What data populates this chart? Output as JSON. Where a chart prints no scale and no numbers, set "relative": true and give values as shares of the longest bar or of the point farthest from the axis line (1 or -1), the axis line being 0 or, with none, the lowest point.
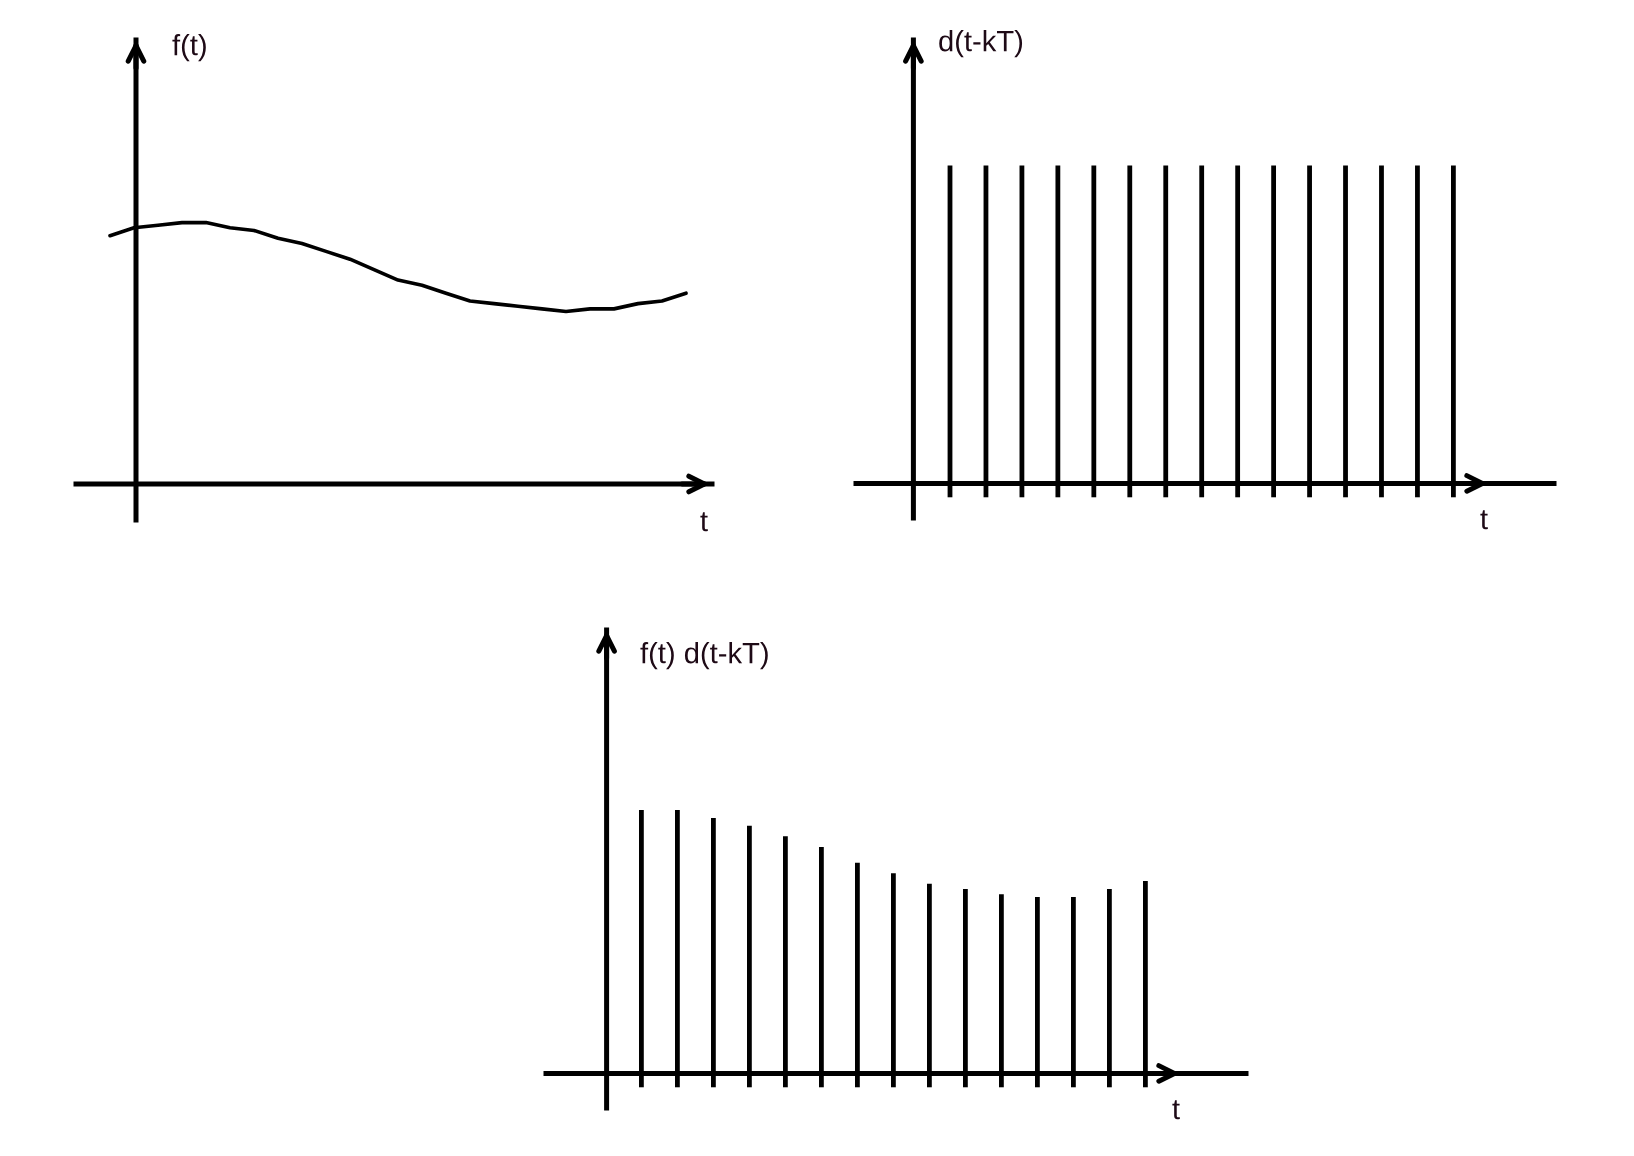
{
  "chart_data": [
    {
      "type": "line",
      "xlabel": "t",
      "ylabel": "f(t)",
      "relative": true,
      "color": "#000000",
      "categories": [
        null,
        null,
        null,
        null,
        null,
        null,
        null,
        null,
        null,
        null,
        null,
        null,
        null,
        null,
        null,
        null,
        null,
        null,
        null,
        null,
        null,
        null,
        null,
        null,
        null
      ],
      "values": [
        0.95,
        0.98,
        0.99,
        1.0,
        1.0,
        0.98,
        0.97,
        0.94,
        0.92,
        0.89,
        0.86,
        0.82,
        0.78,
        0.76,
        0.73,
        0.7,
        0.69,
        0.68,
        0.67,
        0.66,
        0.67,
        0.67,
        0.69,
        0.7,
        0.73
      ]
    },
    {
      "type": "bar",
      "xlabel": "t",
      "ylabel": "d(t-kT)",
      "relative": true,
      "color": "#000000",
      "categories": [
        null,
        null,
        null,
        null,
        null,
        null,
        null,
        null,
        null,
        null,
        null,
        null,
        null,
        null,
        null
      ],
      "values": [
        1,
        1,
        1,
        1,
        1,
        1,
        1,
        1,
        1,
        1,
        1,
        1,
        1,
        1,
        1
      ]
    },
    {
      "type": "bar",
      "xlabel": "t",
      "ylabel": "f(t) d(t-kT)",
      "relative": true,
      "color": "#000000",
      "categories": [
        null,
        null,
        null,
        null,
        null,
        null,
        null,
        null,
        null,
        null,
        null,
        null,
        null,
        null,
        null
      ],
      "values": [
        1.0,
        1.0,
        0.97,
        0.94,
        0.9,
        0.86,
        0.8,
        0.76,
        0.72,
        0.7,
        0.68,
        0.67,
        0.67,
        0.7,
        0.73
      ]
    }
  ]
}
